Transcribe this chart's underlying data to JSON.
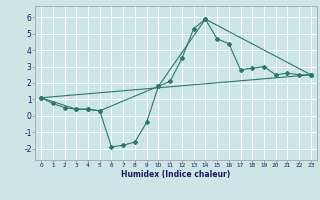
{
  "xlabel": "Humidex (Indice chaleur)",
  "ylabel": "",
  "bg_color": "#cce5e5",
  "grid_color": "#ffffff",
  "line_color": "#2a7a6a",
  "xlim": [
    -0.5,
    23.5
  ],
  "ylim": [
    -2.7,
    6.7
  ],
  "xticks": [
    0,
    1,
    2,
    3,
    4,
    5,
    6,
    7,
    8,
    9,
    10,
    11,
    12,
    13,
    14,
    15,
    16,
    17,
    18,
    19,
    20,
    21,
    22,
    23
  ],
  "yticks": [
    -2,
    -1,
    0,
    1,
    2,
    3,
    4,
    5,
    6
  ],
  "line1_x": [
    0,
    1,
    2,
    3,
    4,
    5,
    6,
    7,
    8,
    9,
    10,
    11,
    12,
    13,
    14,
    15,
    16,
    17,
    18,
    19,
    20,
    21,
    22,
    23
  ],
  "line1_y": [
    1.1,
    0.75,
    0.5,
    0.4,
    0.4,
    0.3,
    -1.9,
    -1.8,
    -1.6,
    -0.4,
    1.8,
    2.1,
    3.5,
    5.3,
    5.9,
    4.7,
    4.4,
    2.8,
    2.9,
    3.0,
    2.5,
    2.6,
    2.5,
    2.5
  ],
  "line2_x": [
    0,
    3,
    4,
    5,
    10,
    14,
    23
  ],
  "line2_y": [
    1.1,
    0.4,
    0.4,
    0.3,
    1.8,
    5.9,
    2.5
  ],
  "line3_x": [
    0,
    23
  ],
  "line3_y": [
    1.1,
    2.5
  ],
  "tick_color": "#1a1a6a",
  "xlabel_color": "#1a1a6a"
}
